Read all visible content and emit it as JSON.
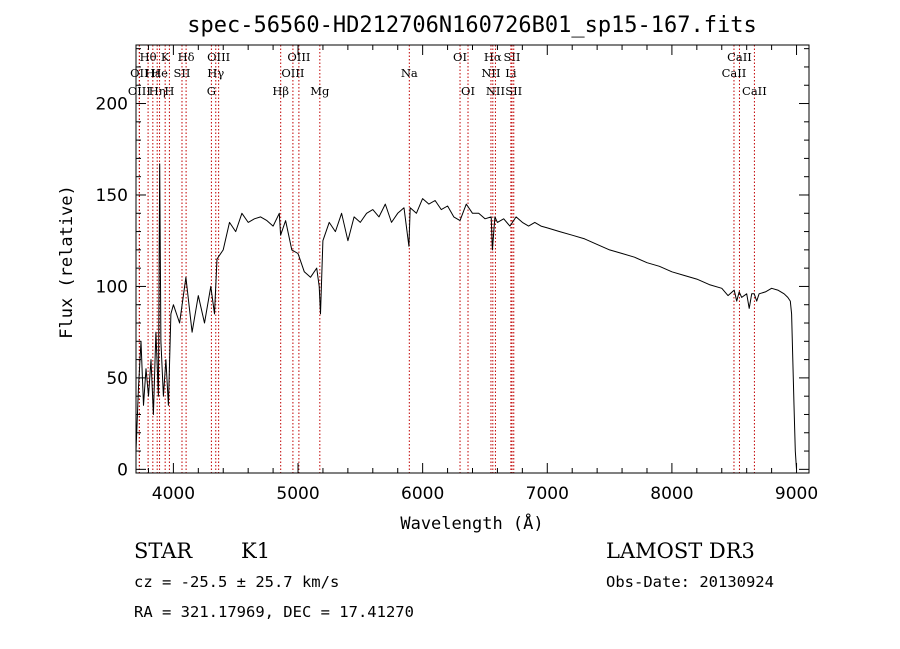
{
  "chart_data": {
    "type": "line",
    "title": "spec-56560-HD212706N160726B01_sp15-167.fits",
    "xlabel": "Wavelength (Å)",
    "ylabel": "Flux (relative)",
    "xlim": [
      3700,
      9100
    ],
    "ylim": [
      -2,
      232
    ],
    "xticks": [
      {
        "value": 4000,
        "label": "4000"
      },
      {
        "value": 5000,
        "label": "5000"
      },
      {
        "value": 6000,
        "label": "6000"
      },
      {
        "value": 7000,
        "label": "7000"
      },
      {
        "value": 8000,
        "label": "8000"
      },
      {
        "value": 9000,
        "label": "9000"
      }
    ],
    "yticks": [
      {
        "value": 0,
        "label": "0"
      },
      {
        "value": 50,
        "label": "50"
      },
      {
        "value": 100,
        "label": "100"
      },
      {
        "value": 150,
        "label": "150"
      },
      {
        "value": 200,
        "label": "200"
      }
    ],
    "series": [
      {
        "name": "flux",
        "x": [
          3700,
          3720,
          3740,
          3760,
          3780,
          3800,
          3820,
          3840,
          3860,
          3880,
          3890,
          3900,
          3920,
          3940,
          3960,
          3980,
          4000,
          4050,
          4100,
          4150,
          4200,
          4250,
          4300,
          4330,
          4350,
          4400,
          4450,
          4500,
          4550,
          4600,
          4650,
          4700,
          4750,
          4800,
          4850,
          4860,
          4900,
          4950,
          5000,
          5050,
          5100,
          5150,
          5170,
          5180,
          5200,
          5250,
          5300,
          5350,
          5400,
          5450,
          5500,
          5550,
          5600,
          5650,
          5700,
          5750,
          5800,
          5850,
          5890,
          5900,
          5950,
          6000,
          6050,
          6100,
          6150,
          6200,
          6250,
          6300,
          6350,
          6400,
          6450,
          6500,
          6550,
          6560,
          6580,
          6600,
          6650,
          6700,
          6750,
          6800,
          6850,
          6900,
          6950,
          7000,
          7100,
          7200,
          7300,
          7400,
          7500,
          7600,
          7700,
          7800,
          7900,
          8000,
          8100,
          8200,
          8300,
          8400,
          8450,
          8500,
          8520,
          8540,
          8560,
          8600,
          8620,
          8640,
          8660,
          8680,
          8700,
          8750,
          8800,
          8850,
          8900,
          8930,
          8950,
          8960,
          8970,
          8980,
          8990,
          9000
        ],
        "y": [
          10,
          45,
          70,
          35,
          55,
          40,
          60,
          30,
          75,
          40,
          167,
          70,
          40,
          60,
          35,
          85,
          90,
          80,
          105,
          75,
          95,
          80,
          100,
          85,
          115,
          120,
          135,
          130,
          140,
          135,
          137,
          138,
          136,
          133,
          140,
          128,
          136,
          120,
          118,
          108,
          105,
          110,
          100,
          85,
          125,
          135,
          130,
          140,
          125,
          138,
          135,
          140,
          142,
          138,
          145,
          135,
          140,
          143,
          122,
          143,
          140,
          148,
          145,
          147,
          142,
          144,
          138,
          136,
          145,
          140,
          140,
          137,
          138,
          120,
          138,
          135,
          137,
          133,
          138,
          135,
          133,
          135,
          133,
          132,
          130,
          128,
          126,
          123,
          120,
          118,
          116,
          113,
          111,
          108,
          106,
          104,
          101,
          99,
          95,
          98,
          92,
          97,
          94,
          96,
          88,
          96,
          96,
          92,
          96,
          97,
          99,
          98,
          96,
          94,
          92,
          85,
          60,
          35,
          10,
          0
        ]
      }
    ],
    "lines": [
      {
        "label": "Hθ",
        "x": 3797,
        "row": 1
      },
      {
        "label": "OII",
        "x": 3727,
        "row": 2
      },
      {
        "label": "OIII",
        "x": 3727,
        "row": 3
      },
      {
        "label": "Hε",
        "x": 3835,
        "row": 2
      },
      {
        "label": "Hη",
        "x": 3870,
        "row": 3
      },
      {
        "label": "K",
        "x": 3934,
        "row": 1
      },
      {
        "label": "He",
        "x": 3889,
        "row": 2
      },
      {
        "label": "H",
        "x": 3968,
        "row": 3
      },
      {
        "label": "SII",
        "x": 4069,
        "row": 2
      },
      {
        "label": "Hδ",
        "x": 4102,
        "row": 1
      },
      {
        "label": "OIII",
        "x": 4363,
        "row": 1
      },
      {
        "label": "Hγ",
        "x": 4340,
        "row": 2
      },
      {
        "label": "G",
        "x": 4305,
        "row": 3
      },
      {
        "label": "Hβ",
        "x": 4861,
        "row": 3
      },
      {
        "label": "OIII",
        "x": 5007,
        "row": 1
      },
      {
        "label": "OIII",
        "x": 4959,
        "row": 2
      },
      {
        "label": "Mg",
        "x": 5175,
        "row": 3
      },
      {
        "label": "Na",
        "x": 5893,
        "row": 2
      },
      {
        "label": "OI",
        "x": 6300,
        "row": 1
      },
      {
        "label": "OI",
        "x": 6364,
        "row": 3
      },
      {
        "label": "Hα",
        "x": 6563,
        "row": 1
      },
      {
        "label": "NII",
        "x": 6548,
        "row": 2
      },
      {
        "label": "NII",
        "x": 6584,
        "row": 3
      },
      {
        "label": "SII",
        "x": 6717,
        "row": 1
      },
      {
        "label": "Li",
        "x": 6708,
        "row": 2
      },
      {
        "label": "SII",
        "x": 6731,
        "row": 3
      },
      {
        "label": "CaII",
        "x": 8542,
        "row": 1
      },
      {
        "label": "CaII",
        "x": 8498,
        "row": 2
      },
      {
        "label": "CaII",
        "x": 8662,
        "row": 3
      }
    ]
  },
  "info": {
    "object_type": "STAR",
    "subclass": "K1",
    "survey": "LAMOST DR3",
    "redshift": "cz = -25.5 ± 25.7 km/s",
    "obs_date": "Obs-Date: 20130924",
    "coords": "RA = 321.17969, DEC =  17.41270"
  },
  "colors": {
    "spectrum": "#000000",
    "line_markers": "#c00000",
    "axes": "#000000"
  }
}
